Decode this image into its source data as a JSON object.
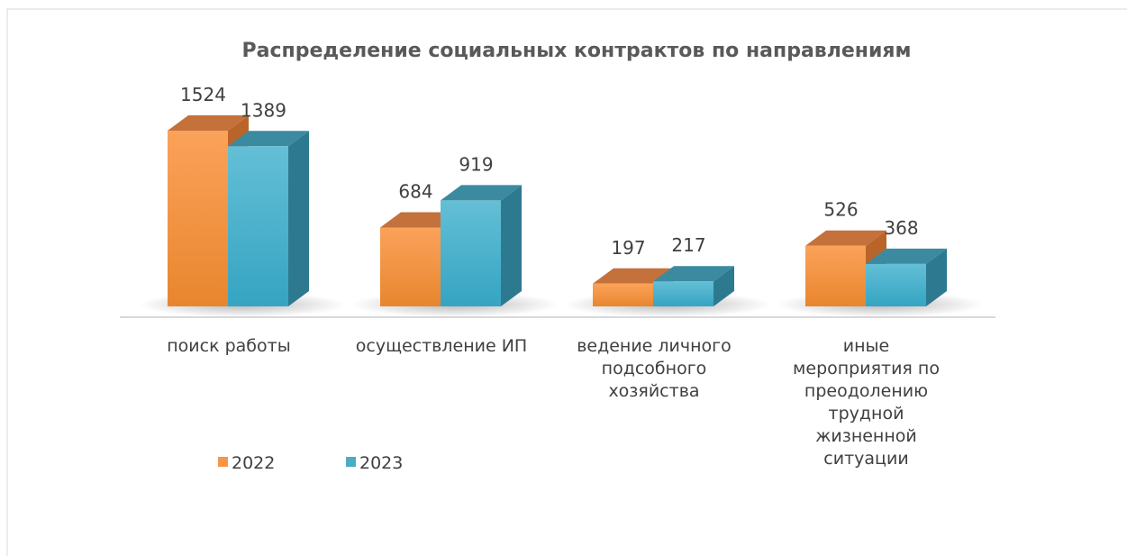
{
  "chart_data": {
    "type": "bar3d",
    "title": "Распределение социальных контрактов по направлениям",
    "categories": [
      "поиск работы",
      "осуществление ИП",
      "ведение личного подсобного хозяйства",
      "иные мероприятия по преодолению трудной жизненной ситуации"
    ],
    "series": [
      {
        "name": "2022",
        "color": "#f79646",
        "values": [
          1524,
          684,
          197,
          526
        ]
      },
      {
        "name": "2023",
        "color": "#4bacc6",
        "values": [
          1389,
          919,
          217,
          368
        ]
      }
    ],
    "legend": "bottom-left"
  }
}
